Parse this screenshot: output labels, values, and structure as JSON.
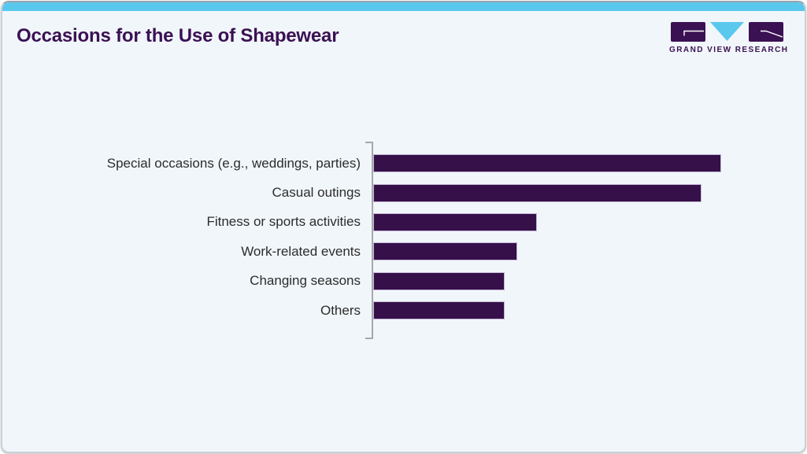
{
  "header": {
    "title": "Occasions for the Use of Shapewear",
    "logo": {
      "brand": "GRAND VIEW RESEARCH"
    }
  },
  "chart_data": {
    "type": "bar",
    "orientation": "horizontal",
    "title": "Occasions for the Use of Shapewear",
    "categories": [
      "Special occasions (e.g., weddings, parties)",
      "Casual outings",
      "Fitness or sports activities",
      "Work-related events",
      "Changing seasons",
      "Others"
    ],
    "values": [
      53,
      50,
      25,
      22,
      20,
      20
    ],
    "values_are_estimates": true,
    "xlabel": "",
    "ylabel": "",
    "xlim": [
      0,
      63
    ],
    "grid": false,
    "legend": false,
    "value_labels_shown": false
  },
  "colors": {
    "accent_cyan": "#5ac8ed",
    "brand_purple": "#3a1153",
    "bar_fill": "#351049",
    "card_background": "#f1f6fa",
    "axis_gray": "#a8a8a8",
    "label_text": "#2c2c2c"
  }
}
